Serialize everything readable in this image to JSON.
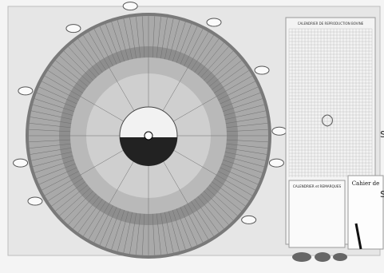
{
  "board": {
    "grid_sheet_title": "CALENDRIER DE REPRODUCTION BOVINE",
    "notes_card_title": "CALENDRIER et REMARQUES",
    "notebook_title": "Cahier de",
    "edge_letters": [
      "s",
      "s"
    ]
  }
}
